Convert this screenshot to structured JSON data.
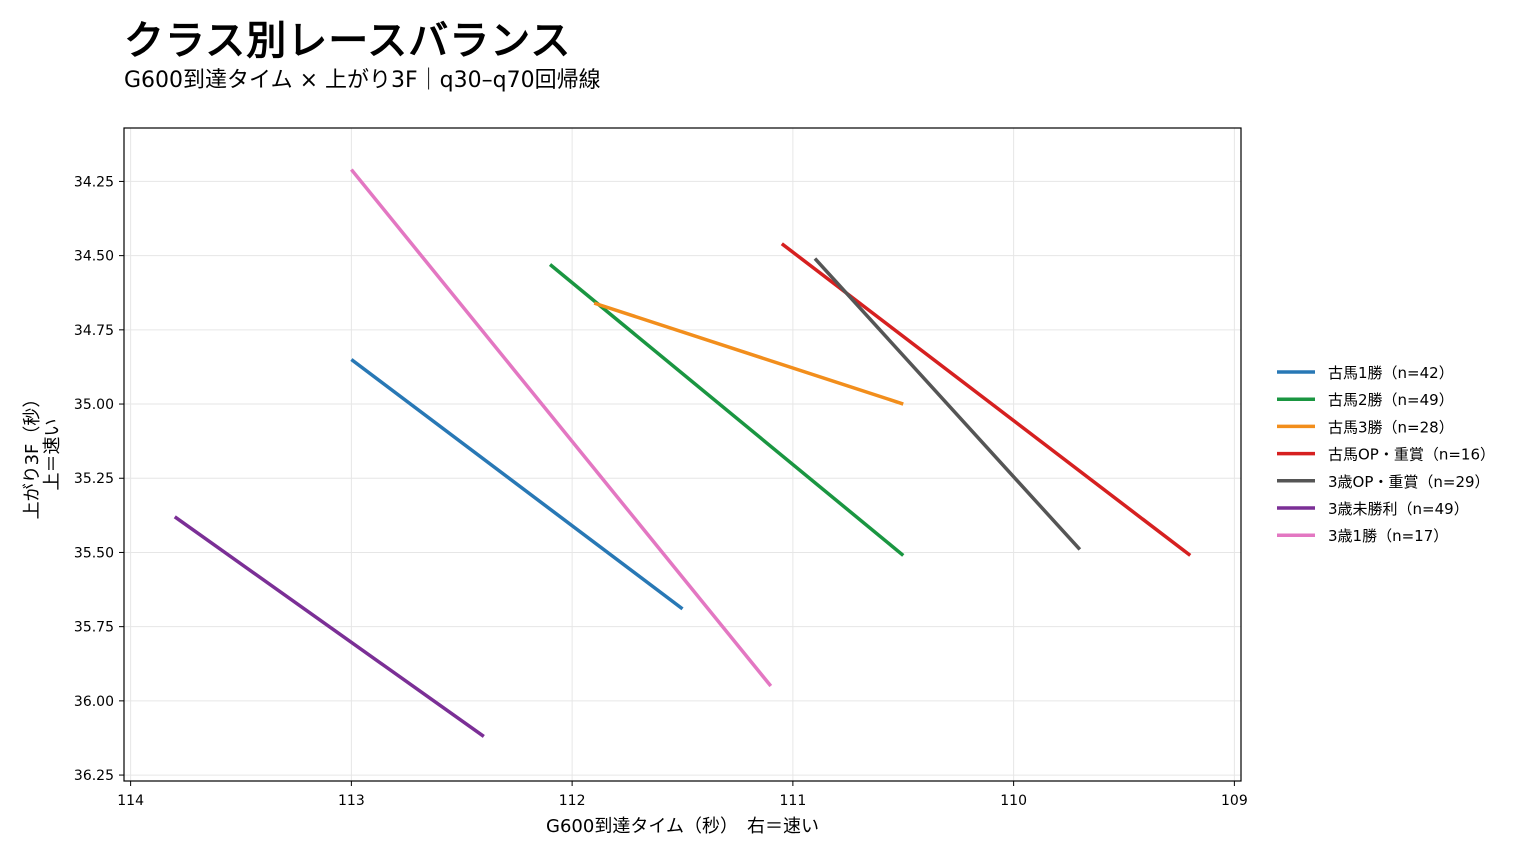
{
  "chart_data": {
    "type": "line",
    "title": "クラス別レースバランス",
    "subtitle": "G600到達タイム × 上がり3F｜q30–q70回帰線",
    "xlabel": "G600到達タイム（秒）　右＝速い",
    "ylabel": [
      "上がり3F（秒）",
      "上＝速い"
    ],
    "xlim": [
      114.03,
      108.97
    ],
    "ylim": [
      36.27,
      34.07
    ],
    "x_inverted": true,
    "y_inverted": true,
    "xticks": [
      114,
      113,
      112,
      111,
      110,
      109
    ],
    "yticks": [
      34.25,
      34.5,
      34.75,
      35.0,
      35.25,
      35.5,
      35.75,
      36.0,
      36.25
    ],
    "ytick_labels": [
      "34.25",
      "34.50",
      "34.75",
      "35.00",
      "35.25",
      "35.50",
      "35.75",
      "36.00",
      "36.25"
    ],
    "grid": true,
    "legend_position": "right",
    "series": [
      {
        "name": "古馬1勝（n=42）",
        "color": "#2878b5",
        "x": [
          113.0,
          111.5
        ],
        "y": [
          34.85,
          35.69
        ]
      },
      {
        "name": "古馬2勝（n=49）",
        "color": "#1a9641",
        "x": [
          112.1,
          110.5
        ],
        "y": [
          34.53,
          35.51
        ]
      },
      {
        "name": "古馬3勝（n=28）",
        "color": "#f28e1c",
        "x": [
          111.9,
          110.5
        ],
        "y": [
          34.66,
          35.0
        ]
      },
      {
        "name": "古馬OP・重賞（n=16）",
        "color": "#d62020",
        "x": [
          111.05,
          109.2
        ],
        "y": [
          34.46,
          35.51
        ]
      },
      {
        "name": "3歳OP・重賞（n=29）",
        "color": "#555555",
        "x": [
          110.9,
          109.7
        ],
        "y": [
          34.51,
          35.49
        ]
      },
      {
        "name": "3歳未勝利（n=49）",
        "color": "#7b2f96",
        "x": [
          113.8,
          112.4
        ],
        "y": [
          35.38,
          36.12
        ]
      },
      {
        "name": "3歳1勝（n=17）",
        "color": "#e377c2",
        "x": [
          113.0,
          111.1
        ],
        "y": [
          34.21,
          35.95
        ]
      }
    ]
  }
}
